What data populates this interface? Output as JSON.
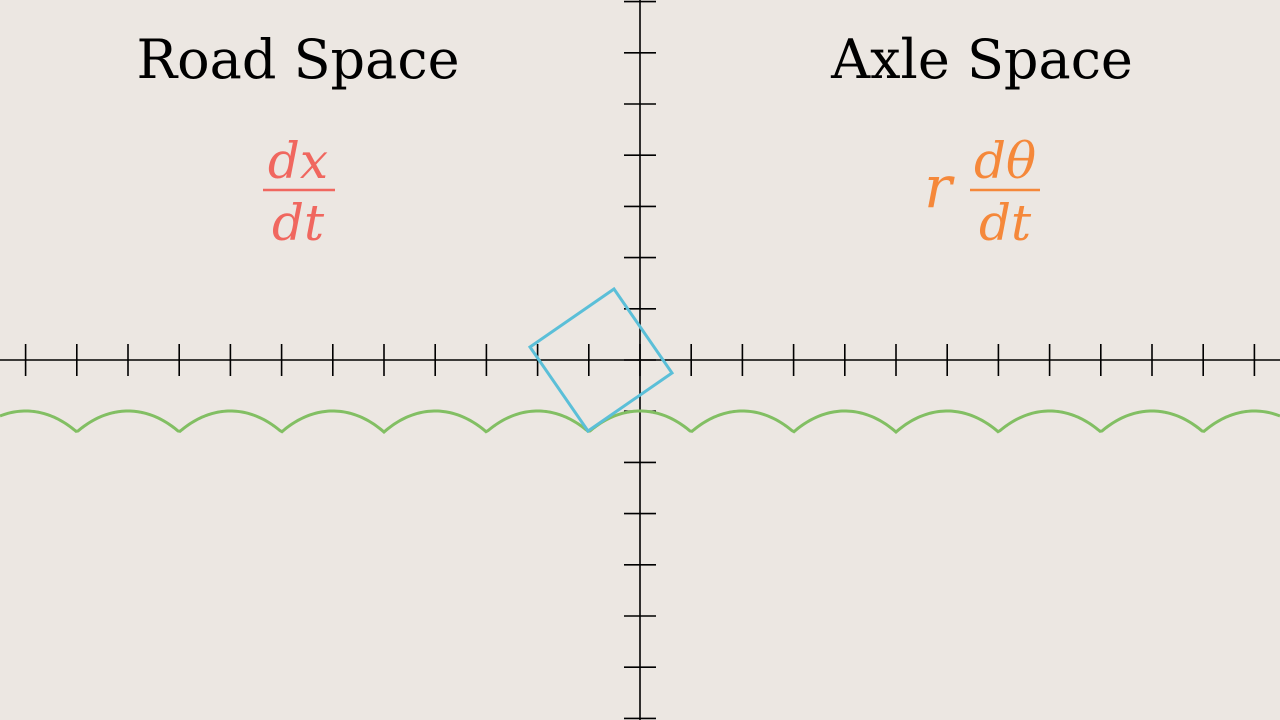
{
  "titles": {
    "left": "Road Space",
    "right": "Axle Space"
  },
  "formulas": {
    "left": {
      "numerator": "dx",
      "denominator": "dt",
      "color": "#f0675f"
    },
    "right": {
      "prefix": "r",
      "numerator": "dθ",
      "denominator": "dt",
      "color": "#f5883a"
    }
  },
  "colors": {
    "background": "#ece7e2",
    "axes": "#000000",
    "road": "#82bf63",
    "wheel": "#5bbfd8"
  }
}
